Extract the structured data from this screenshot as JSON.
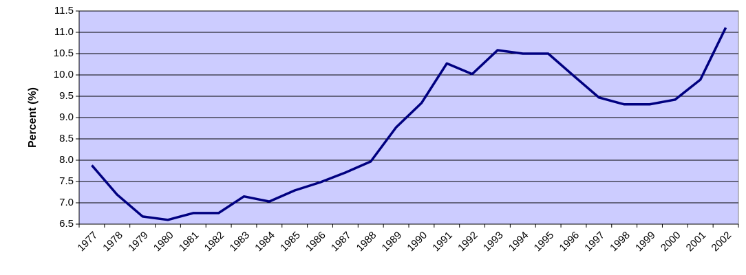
{
  "chart_data": {
    "type": "line",
    "y_label": "Percent (%)",
    "categories": [
      "1977",
      "1978",
      "1979",
      "1980",
      "1981",
      "1982",
      "1983",
      "1984",
      "1985",
      "1986",
      "1987",
      "1988",
      "1989",
      "1990",
      "1991",
      "1992",
      "1993",
      "1994",
      "1995",
      "1996",
      "1997",
      "1998",
      "1999",
      "2000",
      "2001",
      "2002"
    ],
    "values": [
      7.88,
      7.19,
      6.68,
      6.6,
      6.76,
      6.76,
      7.15,
      7.03,
      7.29,
      7.48,
      7.71,
      7.97,
      8.77,
      9.34,
      10.27,
      10.02,
      10.58,
      10.5,
      10.5,
      9.98,
      9.47,
      9.31,
      9.31,
      9.42,
      9.89,
      11.11
    ],
    "color": "#000080",
    "plot_background": "#ccccff",
    "ylim": [
      6.5,
      11.5
    ],
    "yticks": [
      6.5,
      {
        "value": 7,
        "label": "7.0"
      },
      7.5,
      {
        "value": 8,
        "label": "8.0"
      },
      8.5,
      {
        "value": 9,
        "label": "9.0"
      },
      9.5,
      {
        "value": 10,
        "label": "10.0"
      },
      10.5,
      {
        "value": 11,
        "label": "11.0"
      },
      11.5
    ],
    "grid": true
  }
}
